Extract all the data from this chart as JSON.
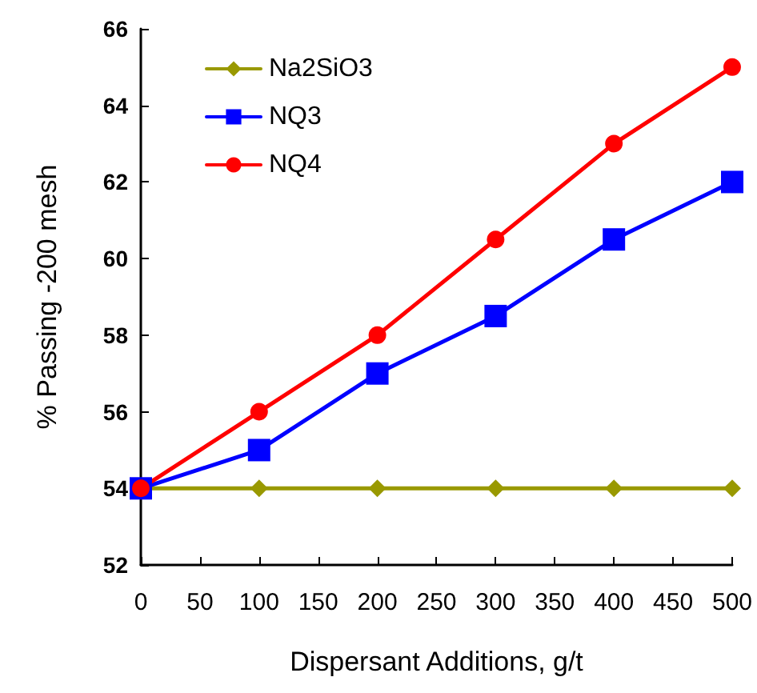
{
  "chart_data": {
    "type": "line",
    "xlabel": "Dispersant Additions, g/t",
    "ylabel": "% Passing -200 mesh",
    "x": [
      0,
      100,
      200,
      300,
      400,
      500
    ],
    "series": [
      {
        "name": "Na2SiO3",
        "color": "#999900",
        "marker": "diamond",
        "values": [
          54,
          54,
          54,
          54,
          54,
          54
        ]
      },
      {
        "name": "NQ3",
        "color": "#0000ff",
        "marker": "square",
        "values": [
          54,
          55,
          57,
          58.5,
          60.5,
          62
        ]
      },
      {
        "name": "NQ4",
        "color": "#ff0000",
        "marker": "circle",
        "values": [
          54,
          56,
          58,
          60.5,
          63,
          65
        ]
      }
    ],
    "xlim": [
      0,
      500
    ],
    "xticks": [
      0,
      50,
      100,
      150,
      200,
      250,
      300,
      350,
      400,
      450,
      500
    ],
    "ylim": [
      52,
      66
    ],
    "yticks": [
      52,
      54,
      56,
      58,
      60,
      62,
      64,
      66
    ],
    "grid": false,
    "legend": "top left",
    "line_style": "solid"
  }
}
